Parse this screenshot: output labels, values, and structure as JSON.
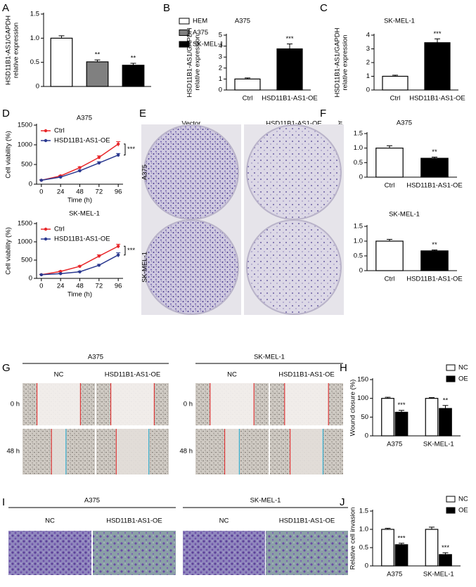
{
  "chart_data": [
    {
      "type": "bar",
      "panel": "A",
      "ylabel": [
        "HSD11B1-AS1/GAPDH",
        "relative expression"
      ],
      "categories": [
        "HEM",
        "A375",
        "SK-MEL-1"
      ],
      "values": [
        1.0,
        0.51,
        0.44
      ],
      "errors": [
        0.05,
        0.04,
        0.04
      ],
      "annotations": [
        null,
        "**",
        "**"
      ],
      "colors": [
        "#ffffff",
        "#808080",
        "#000000"
      ],
      "legend": "right",
      "ylim": [
        0,
        1.5
      ],
      "yticks": [
        0,
        0.5,
        {
          "value": 1,
          "label": "1.0"
        },
        1.5
      ]
    },
    {
      "type": "bar",
      "panel": "B",
      "title": "A375",
      "ylabel": [
        "HSD11B1-AS1/GAPDH",
        "relative expression"
      ],
      "categories": [
        "Ctrl",
        "HSD11B1-AS1-OE"
      ],
      "values": [
        1.0,
        3.75
      ],
      "errors": [
        0.1,
        0.45
      ],
      "annotations": [
        null,
        "***"
      ],
      "colors": [
        "#ffffff",
        "#000000"
      ],
      "ylim": [
        0,
        5
      ],
      "yticks": [
        0,
        1,
        2,
        3,
        4,
        5
      ]
    },
    {
      "type": "bar",
      "panel": "C",
      "title": "SK-MEL-1",
      "ylabel": [
        "HSD11B1-AS1/GAPDH",
        "relative expression"
      ],
      "categories": [
        "Ctrl",
        "HSD11B1-AS1-OE"
      ],
      "values": [
        1.0,
        3.45
      ],
      "errors": [
        0.08,
        0.28
      ],
      "annotations": [
        null,
        "***"
      ],
      "colors": [
        "#ffffff",
        "#000000"
      ],
      "ylim": [
        0,
        4
      ],
      "yticks": [
        0,
        1,
        2,
        3,
        4
      ]
    },
    {
      "type": "line",
      "panel": "D",
      "title": "A375",
      "xlabel": "Time (h)",
      "ylabel": "Cell viability (%)",
      "x": [
        0,
        24,
        48,
        72,
        96
      ],
      "xlim": [
        -6,
        102
      ],
      "xticks": [
        0,
        24,
        48,
        72,
        96
      ],
      "ylim": [
        0,
        1500
      ],
      "yticks": [
        0,
        500,
        1000,
        1500
      ],
      "legend": "upper left",
      "annotation": "***",
      "series": [
        {
          "name": "Ctrl",
          "color": "#e8282b",
          "values": [
            100,
            210,
            420,
            680,
            1020
          ],
          "errors": [
            10,
            15,
            25,
            40,
            60
          ]
        },
        {
          "name": "HSD11B1-AS1-OE",
          "color": "#2b3990",
          "values": [
            100,
            180,
            340,
            540,
            740
          ],
          "errors": [
            10,
            12,
            20,
            30,
            40
          ]
        }
      ]
    },
    {
      "type": "line",
      "title": "SK-MEL-1",
      "xlabel": "Time (h)",
      "ylabel": "Cell viability (%)",
      "x": [
        0,
        24,
        48,
        72,
        96
      ],
      "xlim": [
        -6,
        102
      ],
      "xticks": [
        0,
        24,
        48,
        72,
        96
      ],
      "ylim": [
        0,
        1500
      ],
      "yticks": [
        0,
        500,
        1000,
        1500
      ],
      "legend": "upper left",
      "annotation": "***",
      "series": [
        {
          "name": "Ctrl",
          "color": "#e8282b",
          "values": [
            100,
            190,
            330,
            610,
            880
          ],
          "errors": [
            10,
            15,
            20,
            35,
            55
          ]
        },
        {
          "name": "HSD11B1-AS1-OE",
          "color": "#2b3990",
          "values": [
            100,
            130,
            180,
            360,
            640
          ],
          "errors": [
            8,
            10,
            15,
            25,
            60
          ]
        }
      ]
    },
    {
      "type": "bar",
      "panel": "F",
      "title": "A375",
      "ylabel": "Relative colony number",
      "categories": [
        "Ctrl",
        "HSD11B1-AS1-OE"
      ],
      "values": [
        1.0,
        0.65
      ],
      "errors": [
        0.08,
        0.04
      ],
      "annotations": [
        null,
        "**"
      ],
      "colors": [
        "#ffffff",
        "#000000"
      ],
      "ylim": [
        0,
        1.5
      ],
      "yticks": [
        0,
        0.5,
        {
          "value": 1,
          "label": "1.0"
        },
        1.5
      ]
    },
    {
      "type": "bar",
      "title": "SK-MEL-1",
      "ylabel": "Relative colony number",
      "categories": [
        "Ctrl",
        "HSD11B1-AS1-OE"
      ],
      "values": [
        1.0,
        0.67
      ],
      "errors": [
        0.06,
        0.03
      ],
      "annotations": [
        null,
        "**"
      ],
      "colors": [
        "#ffffff",
        "#000000"
      ],
      "ylim": [
        0,
        1.5
      ],
      "yticks": [
        0,
        0.5,
        {
          "value": 1,
          "label": "1.0"
        },
        1.5
      ]
    },
    {
      "type": "bar",
      "panel": "H",
      "ylabel": "Wound closure (%)",
      "categories": [
        "A375",
        "SK-MEL-1"
      ],
      "legend": "upper right",
      "ylim": [
        0,
        150
      ],
      "yticks": [
        0,
        50,
        100,
        150
      ],
      "series": [
        {
          "name": "NC",
          "color": "#ffffff",
          "values": [
            100,
            100
          ],
          "errors": [
            3,
            2
          ]
        },
        {
          "name": "OE",
          "color": "#000000",
          "values": [
            63,
            73
          ],
          "errors": [
            5,
            8
          ],
          "annotations": [
            "***",
            "**"
          ]
        }
      ]
    },
    {
      "type": "bar",
      "panel": "J",
      "ylabel": "Relative cell invasion",
      "categories": [
        "A375",
        "SK-MEL-1"
      ],
      "legend": "upper right",
      "ylim": [
        0,
        1.5
      ],
      "yticks": [
        0,
        0.5,
        {
          "value": 1,
          "label": "1.0"
        },
        1.5
      ],
      "series": [
        {
          "name": "NC",
          "color": "#ffffff",
          "values": [
            1.0,
            1.0
          ],
          "errors": [
            0.03,
            0.06
          ]
        },
        {
          "name": "OE",
          "color": "#000000",
          "values": [
            0.58,
            0.31
          ],
          "errors": [
            0.04,
            0.05
          ],
          "annotations": [
            "***",
            "***"
          ]
        }
      ]
    }
  ],
  "image_panels": {
    "E": {
      "letter": "E",
      "columns": [
        "Vector",
        "HSD11B1-AS1-OE"
      ],
      "rows": [
        "A375",
        "SK-MEL-1"
      ]
    },
    "G": {
      "letter": "G",
      "groups": [
        "A375",
        "SK-MEL-1"
      ],
      "columns": [
        "NC",
        "HSD11B1-AS1-OE"
      ],
      "rows": [
        "0 h",
        "48 h"
      ]
    },
    "I": {
      "letter": "I",
      "groups": [
        "A375",
        "SK-MEL-1"
      ],
      "columns": [
        "NC",
        "HSD11B1-AS1-OE"
      ]
    }
  }
}
